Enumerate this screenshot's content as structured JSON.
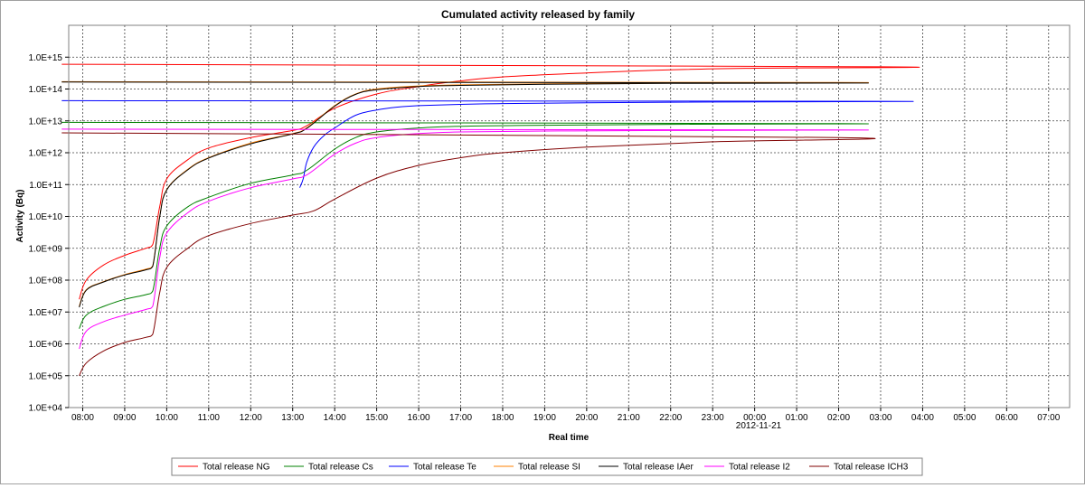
{
  "chart_data": {
    "type": "line",
    "title": "Cumulated activity released by family",
    "xlabel": "Real time",
    "ylabel": "Activity (Bq)",
    "date_label": "2012-11-21",
    "y_scale": "log",
    "ylim": [
      "1.0E+04",
      "1.0E+16"
    ],
    "xlim": [
      "07:40",
      "07:30 (+1 day)"
    ],
    "grid": true,
    "legend_position": "bottom",
    "x_tick_labels": [
      "08:00",
      "09:00",
      "10:00",
      "11:00",
      "12:00",
      "13:00",
      "14:00",
      "15:00",
      "16:00",
      "17:00",
      "18:00",
      "19:00",
      "20:00",
      "21:00",
      "22:00",
      "23:00",
      "00:00",
      "01:00",
      "02:00",
      "03:00",
      "04:00",
      "05:00",
      "06:00",
      "07:00"
    ],
    "y_tick_labels": [
      "1.0E+04",
      "1.0E+05",
      "1.0E+06",
      "1.0E+07",
      "1.0E+08",
      "1.0E+09",
      "1.0E+10",
      "1.0E+11",
      "1.0E+12",
      "1.0E+13",
      "1.0E+14",
      "1.0E+15"
    ],
    "series": [
      {
        "name": "Total release  NG",
        "color": "#ff0000",
        "x": [
          "07:55",
          "08:05",
          "08:30",
          "09:00",
          "09:30",
          "09:40",
          "09:50",
          "10:00",
          "10:30",
          "11:00",
          "12:00",
          "13:00",
          "13:20",
          "14:00",
          "15:00",
          "16:00",
          "17:00",
          "18:00",
          "20:00",
          "22:00",
          "00:00",
          "03:00",
          "07:30"
        ],
        "y": [
          25000000.0,
          100000000.0,
          300000000.0,
          600000000.0,
          1000000000.0,
          1300000000.0,
          20000000000.0,
          150000000000.0,
          600000000000.0,
          1400000000000.0,
          3000000000000.0,
          5000000000000.0,
          7000000000000.0,
          25000000000000.0,
          70000000000000.0,
          120000000000000.0,
          180000000000000.0,
          240000000000000.0,
          320000000000000.0,
          400000000000000.0,
          450000000000000.0,
          500000000000000.0,
          600000000000000.0
        ]
      },
      {
        "name": "Total release  Cs",
        "color": "#008000",
        "x": [
          "07:55",
          "08:05",
          "08:30",
          "09:00",
          "09:30",
          "09:40",
          "09:50",
          "10:00",
          "10:30",
          "11:00",
          "12:00",
          "13:00",
          "13:20",
          "14:00",
          "14:30",
          "15:00",
          "16:00",
          "17:00",
          "19:00",
          "22:00",
          "02:00",
          "07:30"
        ],
        "y": [
          3000000.0,
          8000000.0,
          15000000.0,
          25000000.0,
          35000000.0,
          45000000.0,
          1000000000.0,
          5000000000.0,
          20000000000.0,
          40000000000.0,
          110000000000.0,
          200000000000.0,
          280000000000.0,
          1300000000000.0,
          3000000000000.0,
          4500000000000.0,
          6000000000000.0,
          6800000000000.0,
          7300000000000.0,
          7800000000000.0,
          8200000000000.0,
          9000000000000.0
        ]
      },
      {
        "name": "Total release  Te",
        "color": "#0000ff",
        "x": [
          "13:10",
          "13:15",
          "13:20",
          "13:30",
          "13:45",
          "14:00",
          "14:30",
          "15:00",
          "15:30",
          "16:00",
          "17:00",
          "18:00",
          "20:00",
          "23:00",
          "03:00",
          "07:30"
        ],
        "y": [
          80000000000.0,
          150000000000.0,
          500000000000.0,
          1500000000000.0,
          3500000000000.0,
          6000000000000.0,
          15000000000000.0,
          22000000000000.0,
          27000000000000.0,
          30000000000000.0,
          33000000000000.0,
          35000000000000.0,
          37000000000000.0,
          39000000000000.0,
          41000000000000.0,
          43000000000000.0
        ]
      },
      {
        "name": "Total release  SI",
        "color": "#ff8000",
        "x": [
          "07:55",
          "08:05",
          "08:30",
          "09:00",
          "09:30",
          "09:40",
          "09:50",
          "10:00",
          "10:30",
          "11:00",
          "12:00",
          "13:00",
          "13:20",
          "14:00",
          "14:30",
          "15:00",
          "16:00",
          "17:00",
          "19:00",
          "22:00",
          "02:00",
          "07:30"
        ],
        "y": [
          15000000.0,
          50000000.0,
          90000000.0,
          150000000.0,
          220000000.0,
          280000000.0,
          10000000000.0,
          70000000000.0,
          300000000000.0,
          700000000000.0,
          2000000000000.0,
          4000000000000.0,
          6000000000000.0,
          30000000000000.0,
          70000000000000.0,
          100000000000000.0,
          125000000000000.0,
          135000000000000.0,
          145000000000000.0,
          155000000000000.0,
          160000000000000.0,
          170000000000000.0
        ]
      },
      {
        "name": "Total release  IAer",
        "color": "#000000",
        "x": [
          "07:55",
          "08:05",
          "08:30",
          "09:00",
          "09:30",
          "09:40",
          "09:50",
          "10:00",
          "10:30",
          "11:00",
          "12:00",
          "13:00",
          "13:20",
          "14:00",
          "14:30",
          "15:00",
          "16:00",
          "17:00",
          "19:00",
          "22:00",
          "02:00",
          "07:30"
        ],
        "y": [
          14000000.0,
          48000000.0,
          88000000.0,
          145000000.0,
          210000000.0,
          270000000.0,
          9500000000.0,
          68000000000.0,
          290000000000.0,
          680000000000.0,
          1900000000000.0,
          3900000000000.0,
          5800000000000.0,
          29000000000000.0,
          68000000000000.0,
          95000000000000.0,
          120000000000000.0,
          130000000000000.0,
          140000000000000.0,
          150000000000000.0,
          155000000000000.0,
          165000000000000.0
        ]
      },
      {
        "name": "Total release  I2",
        "color": "#ff00ff",
        "x": [
          "07:55",
          "08:05",
          "08:30",
          "09:00",
          "09:30",
          "09:40",
          "09:50",
          "10:00",
          "10:30",
          "11:00",
          "12:00",
          "13:00",
          "13:20",
          "14:00",
          "14:30",
          "15:00",
          "16:00",
          "17:00",
          "19:00",
          "22:00",
          "02:00",
          "07:30"
        ],
        "y": [
          700000.0,
          2500000.0,
          5000000.0,
          8000000.0,
          12000000.0,
          15000000.0,
          500000000.0,
          3000000000.0,
          13000000000.0,
          30000000000.0,
          80000000000.0,
          150000000000.0,
          200000000000.0,
          900000000000.0,
          2000000000000.0,
          3000000000000.0,
          4000000000000.0,
          4500000000000.0,
          4800000000000.0,
          5000000000000.0,
          5200000000000.0,
          5500000000000.0
        ]
      },
      {
        "name": "Total release  ICH3",
        "color": "#800000",
        "x": [
          "07:55",
          "08:05",
          "08:30",
          "09:00",
          "09:30",
          "09:40",
          "09:50",
          "10:00",
          "10:30",
          "11:00",
          "12:00",
          "13:00",
          "13:30",
          "14:00",
          "15:00",
          "16:00",
          "17:00",
          "18:00",
          "20:00",
          "23:00",
          "02:00",
          "07:30"
        ],
        "y": [
          100000.0,
          250000.0,
          600000.0,
          1100000.0,
          1600000.0,
          2000000.0,
          40000000.0,
          250000000.0,
          1000000000.0,
          2500000000.0,
          6000000000.0,
          11000000000.0,
          15000000000.0,
          35000000000.0,
          160000000000.0,
          400000000000.0,
          700000000000.0,
          1000000000000.0,
          1500000000000.0,
          2200000000000.0,
          3000000000000.0,
          4200000000000.0
        ]
      }
    ]
  }
}
